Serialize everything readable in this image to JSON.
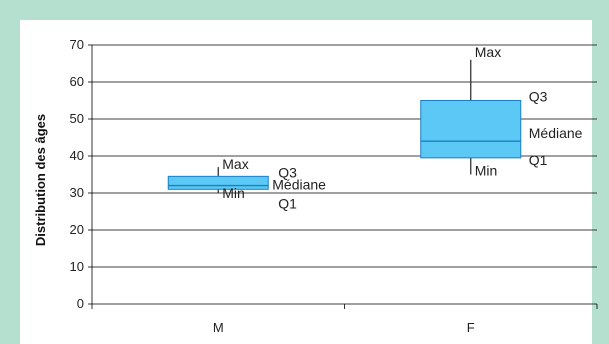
{
  "chart_data": {
    "type": "box",
    "title": "",
    "xlabel": "",
    "ylabel": "Distribution des âges",
    "ylim": [
      0,
      70
    ],
    "yticks": [
      "0",
      "10",
      "20",
      "30",
      "40",
      "50",
      "60",
      "70"
    ],
    "grid": true,
    "categories": [
      "M",
      "F"
    ],
    "boxes": [
      {
        "category": "M",
        "min": 30,
        "q1": 31,
        "median": 32,
        "q3": 34.5,
        "max": 37
      },
      {
        "category": "F",
        "min": 35,
        "q1": 39.5,
        "median": 44,
        "q3": 55,
        "max": 66
      }
    ],
    "annotations": {
      "max": "Max",
      "q3": "Q3",
      "median": "Médiane",
      "q1": "Q1",
      "min": "Min"
    },
    "colors": {
      "box_fill": "#5bc8f5",
      "box_stroke": "#1a7fc4",
      "frame": "#b5e0d0"
    }
  }
}
